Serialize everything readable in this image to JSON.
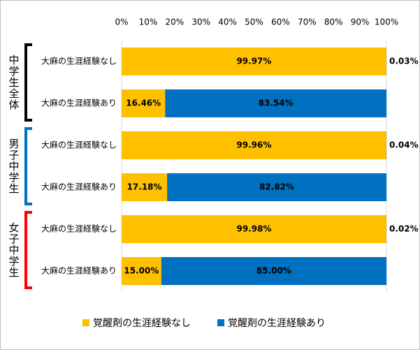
{
  "chart_data": {
    "type": "bar",
    "orientation": "horizontal",
    "stacked": true,
    "categories": [
      "大麻の生涯経験なし",
      "大麻の生涯経験あり",
      "大麻の生涯経験なし",
      "大麻の生涯経験あり",
      "大麻の生涯経験なし",
      "大麻の生涯経験あり"
    ],
    "groups": [
      {
        "label": "中学生全体",
        "color": "#000000"
      },
      {
        "label": "男子中学生",
        "color": "#0070C0"
      },
      {
        "label": "女子中学生",
        "color": "#FF0000"
      }
    ],
    "series": [
      {
        "name": "覚醒剤の生涯経験なし",
        "color": "#FFC000",
        "values": [
          99.97,
          16.46,
          99.96,
          17.18,
          99.98,
          15.0
        ],
        "value_labels": [
          "99.97%",
          "16.46%",
          "99.96%",
          "17.18%",
          "99.98%",
          "15.00%"
        ]
      },
      {
        "name": "覚醒剤の生涯経験あり",
        "color": "#0070C0",
        "values": [
          0.03,
          83.54,
          0.04,
          82.82,
          0.02,
          85.0
        ],
        "value_labels": [
          "0.03%",
          "83.54%",
          "0.04%",
          "82.82%",
          "0.02%",
          "85.00%"
        ]
      }
    ],
    "xlim": [
      0,
      100
    ],
    "xticks": [
      {
        "value": 0,
        "label": "0%"
      },
      {
        "value": 10,
        "label": "10%"
      },
      {
        "value": 20,
        "label": "20%"
      },
      {
        "value": 30,
        "label": "30%"
      },
      {
        "value": 40,
        "label": "40%"
      },
      {
        "value": 50,
        "label": "50%"
      },
      {
        "value": 60,
        "label": "60%"
      },
      {
        "value": 70,
        "label": "70%"
      },
      {
        "value": 80,
        "label": "80%"
      },
      {
        "value": 90,
        "label": "90%"
      },
      {
        "value": 100,
        "label": "100%"
      }
    ],
    "legend": "bottom"
  }
}
